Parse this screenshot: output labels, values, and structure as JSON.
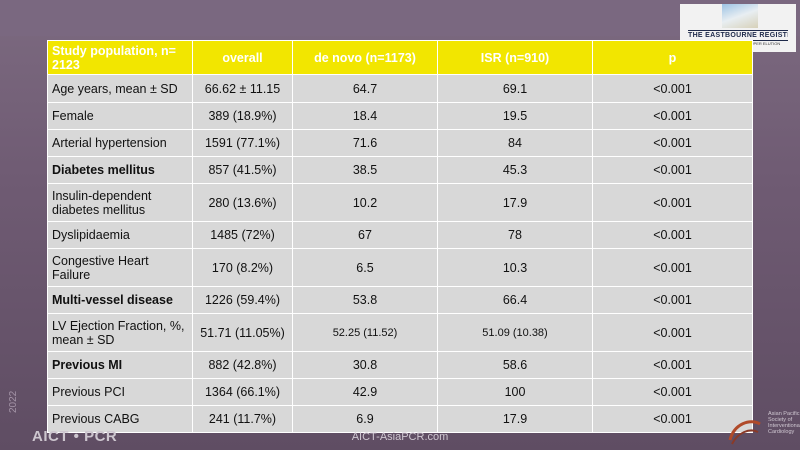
{
  "logo": {
    "label": "THE EASTBOURNE REGISTRY",
    "sub": "SUPER ELUTION"
  },
  "table": {
    "headers": [
      "Study population, n= 2123",
      "overall",
      "de novo (n=1173)",
      "ISR (n=910)",
      "p"
    ],
    "rows": [
      {
        "label": "Age years, mean ± SD",
        "overall": "66.62 ± 11.15",
        "denovo": "64.7",
        "isr": "69.1",
        "p": "<0.001"
      },
      {
        "label": "Female",
        "overall": "389 (18.9%)",
        "denovo": "18.4",
        "isr": "19.5",
        "p": "<0.001"
      },
      {
        "label": "Arterial hypertension",
        "overall": "1591 (77.1%)",
        "denovo": "71.6",
        "isr": "84",
        "p": "<0.001"
      },
      {
        "label": "Diabetes mellitus",
        "overall": "857 (41.5%)",
        "denovo": "38.5",
        "isr": "45.3",
        "p": "<0.001"
      },
      {
        "label": "Insulin-dependent diabetes mellitus",
        "overall": "280 (13.6%)",
        "denovo": "10.2",
        "isr": "17.9",
        "p": "<0.001"
      },
      {
        "label": "Dyslipidaemia",
        "overall": "1485 (72%)",
        "denovo": "67",
        "isr": "78",
        "p": "<0.001"
      },
      {
        "label": "Congestive Heart Failure",
        "overall": "170 (8.2%)",
        "denovo": "6.5",
        "isr": "10.3",
        "p": "<0.001"
      },
      {
        "label": "Multi-vessel disease",
        "overall": "1226 (59.4%)",
        "denovo": "53.8",
        "isr": "66.4",
        "p": "<0.001"
      },
      {
        "label": "LV Ejection Fraction, %, mean ± SD",
        "overall": "51.71 (11.05%)",
        "denovo": "52.25 (11.52)",
        "isr": "51.09 (10.38)",
        "p": "<0.001"
      },
      {
        "label": "Previous MI",
        "overall": "882 (42.8%)",
        "denovo": "30.8",
        "isr": "58.6",
        "p": "<0.001"
      },
      {
        "label": "Previous PCI",
        "overall": "1364 (66.1%)",
        "denovo": "42.9",
        "isr": "100",
        "p": "<0.001"
      },
      {
        "label": "Previous CABG",
        "overall": "241 (11.7%)",
        "denovo": "6.9",
        "isr": "17.9",
        "p": "<0.001"
      }
    ]
  },
  "footer": {
    "brand": "AICT • PCR",
    "year": "2022",
    "url": "AICT-AsiaPCR.com",
    "society": "Asian Pacific Society of Interventional Cardiology"
  },
  "colors": {
    "header_bg": "#f2e600",
    "cell_bg": "#d8d8d8",
    "slide_bg": "#6f5b73"
  }
}
